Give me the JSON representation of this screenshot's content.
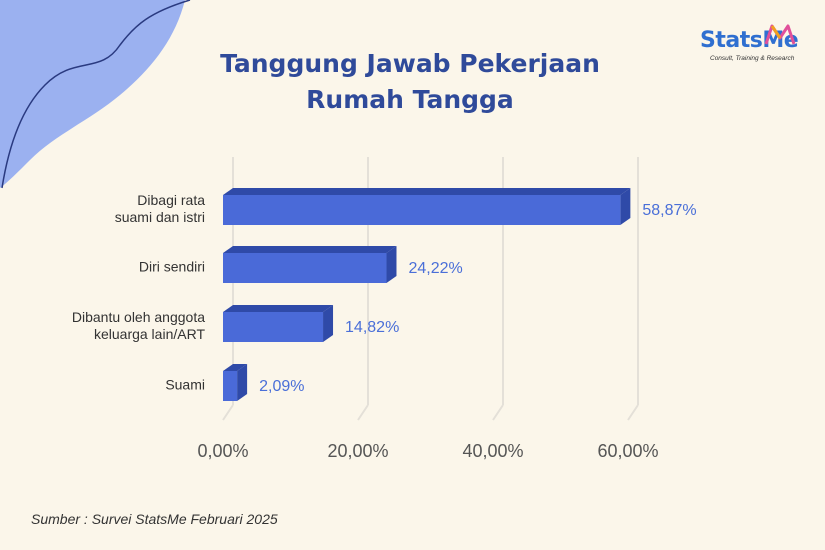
{
  "title_lines": [
    "Tanggung Jawab Pekerjaan",
    "Rumah Tangga"
  ],
  "logo": {
    "word": "StatsMe",
    "tagline": "Consult, Training & Research"
  },
  "source": "Sumber : Survei StatsMe Februari 2025",
  "colors": {
    "bar": "#4a6ad8",
    "bar_dark": "#2f4aa8",
    "title": "#2f4a9a",
    "value": "#4a6fd8",
    "decor": "#9bb1f0"
  },
  "chart_data": {
    "type": "bar",
    "orientation": "horizontal",
    "title": "Tanggung Jawab Pekerjaan Rumah Tangga",
    "categories": [
      [
        "Dibagi rata",
        "suami dan istri"
      ],
      [
        "Diri sendiri"
      ],
      [
        "Dibantu oleh anggota",
        "keluarga lain/ART"
      ],
      [
        "Suami"
      ]
    ],
    "values": [
      58.87,
      24.22,
      14.82,
      2.09
    ],
    "value_labels": [
      "58,87%",
      "24,22%",
      "14,82%",
      "2,09%"
    ],
    "ticks": [
      0,
      20,
      40,
      60
    ],
    "tick_labels": [
      "0,00%",
      "20,00%",
      "40,00%",
      "60,00%"
    ],
    "xlim": [
      0,
      60
    ],
    "grid": true
  }
}
